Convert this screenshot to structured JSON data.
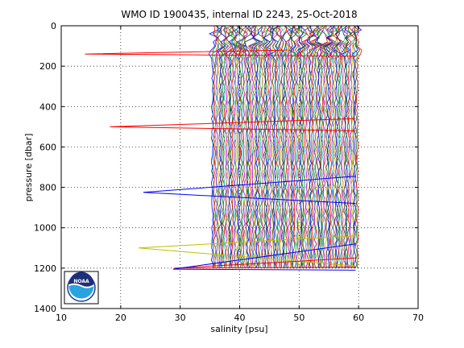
{
  "chart_data": {
    "type": "line",
    "title": "WMO ID 1900435, internal ID 2243, 25-Oct-2018",
    "xlabel": "salinity [psu]",
    "ylabel": "pressure [dbar]",
    "xlim": [
      10,
      70
    ],
    "ylim": [
      0,
      1400
    ],
    "y_reversed": true,
    "grid": true,
    "x_ticks": [
      10,
      20,
      30,
      40,
      50,
      60,
      70
    ],
    "y_ticks": [
      0,
      200,
      400,
      600,
      800,
      1000,
      1200,
      1400
    ],
    "series_colors": [
      "#0000ff",
      "#008000",
      "#ff0000",
      "#00bfbf",
      "#bf00bf",
      "#bfbf00",
      "#404040"
    ],
    "profile_band": {
      "s_first": 35.4,
      "s_last": 59.8,
      "n_profiles": 115,
      "p_min": 0,
      "p_max": 1210
    },
    "spikes": [
      {
        "color": "#ff0000",
        "points": [
          [
            48.0,
            120
          ],
          [
            14.0,
            140
          ],
          [
            59.5,
            150
          ]
        ]
      },
      {
        "color": "#ff0000",
        "points": [
          [
            59.5,
            460
          ],
          [
            18.2,
            500
          ],
          [
            59.5,
            520
          ]
        ]
      },
      {
        "color": "#0000ff",
        "points": [
          [
            59.5,
            745
          ],
          [
            23.8,
            825
          ],
          [
            59.5,
            880
          ]
        ]
      },
      {
        "color": "#bfbf00",
        "points": [
          [
            59.5,
            1040
          ],
          [
            23.0,
            1100
          ],
          [
            59.5,
            1190
          ]
        ]
      },
      {
        "color": "#ff0000",
        "points": [
          [
            59.5,
            1150
          ],
          [
            29.0,
            1200
          ],
          [
            59.5,
            1195
          ]
        ]
      },
      {
        "color": "#0000ff",
        "points": [
          [
            59.5,
            1080
          ],
          [
            28.8,
            1205
          ],
          [
            59.5,
            1210
          ]
        ]
      }
    ],
    "logo": {
      "text": "NOAA"
    }
  }
}
